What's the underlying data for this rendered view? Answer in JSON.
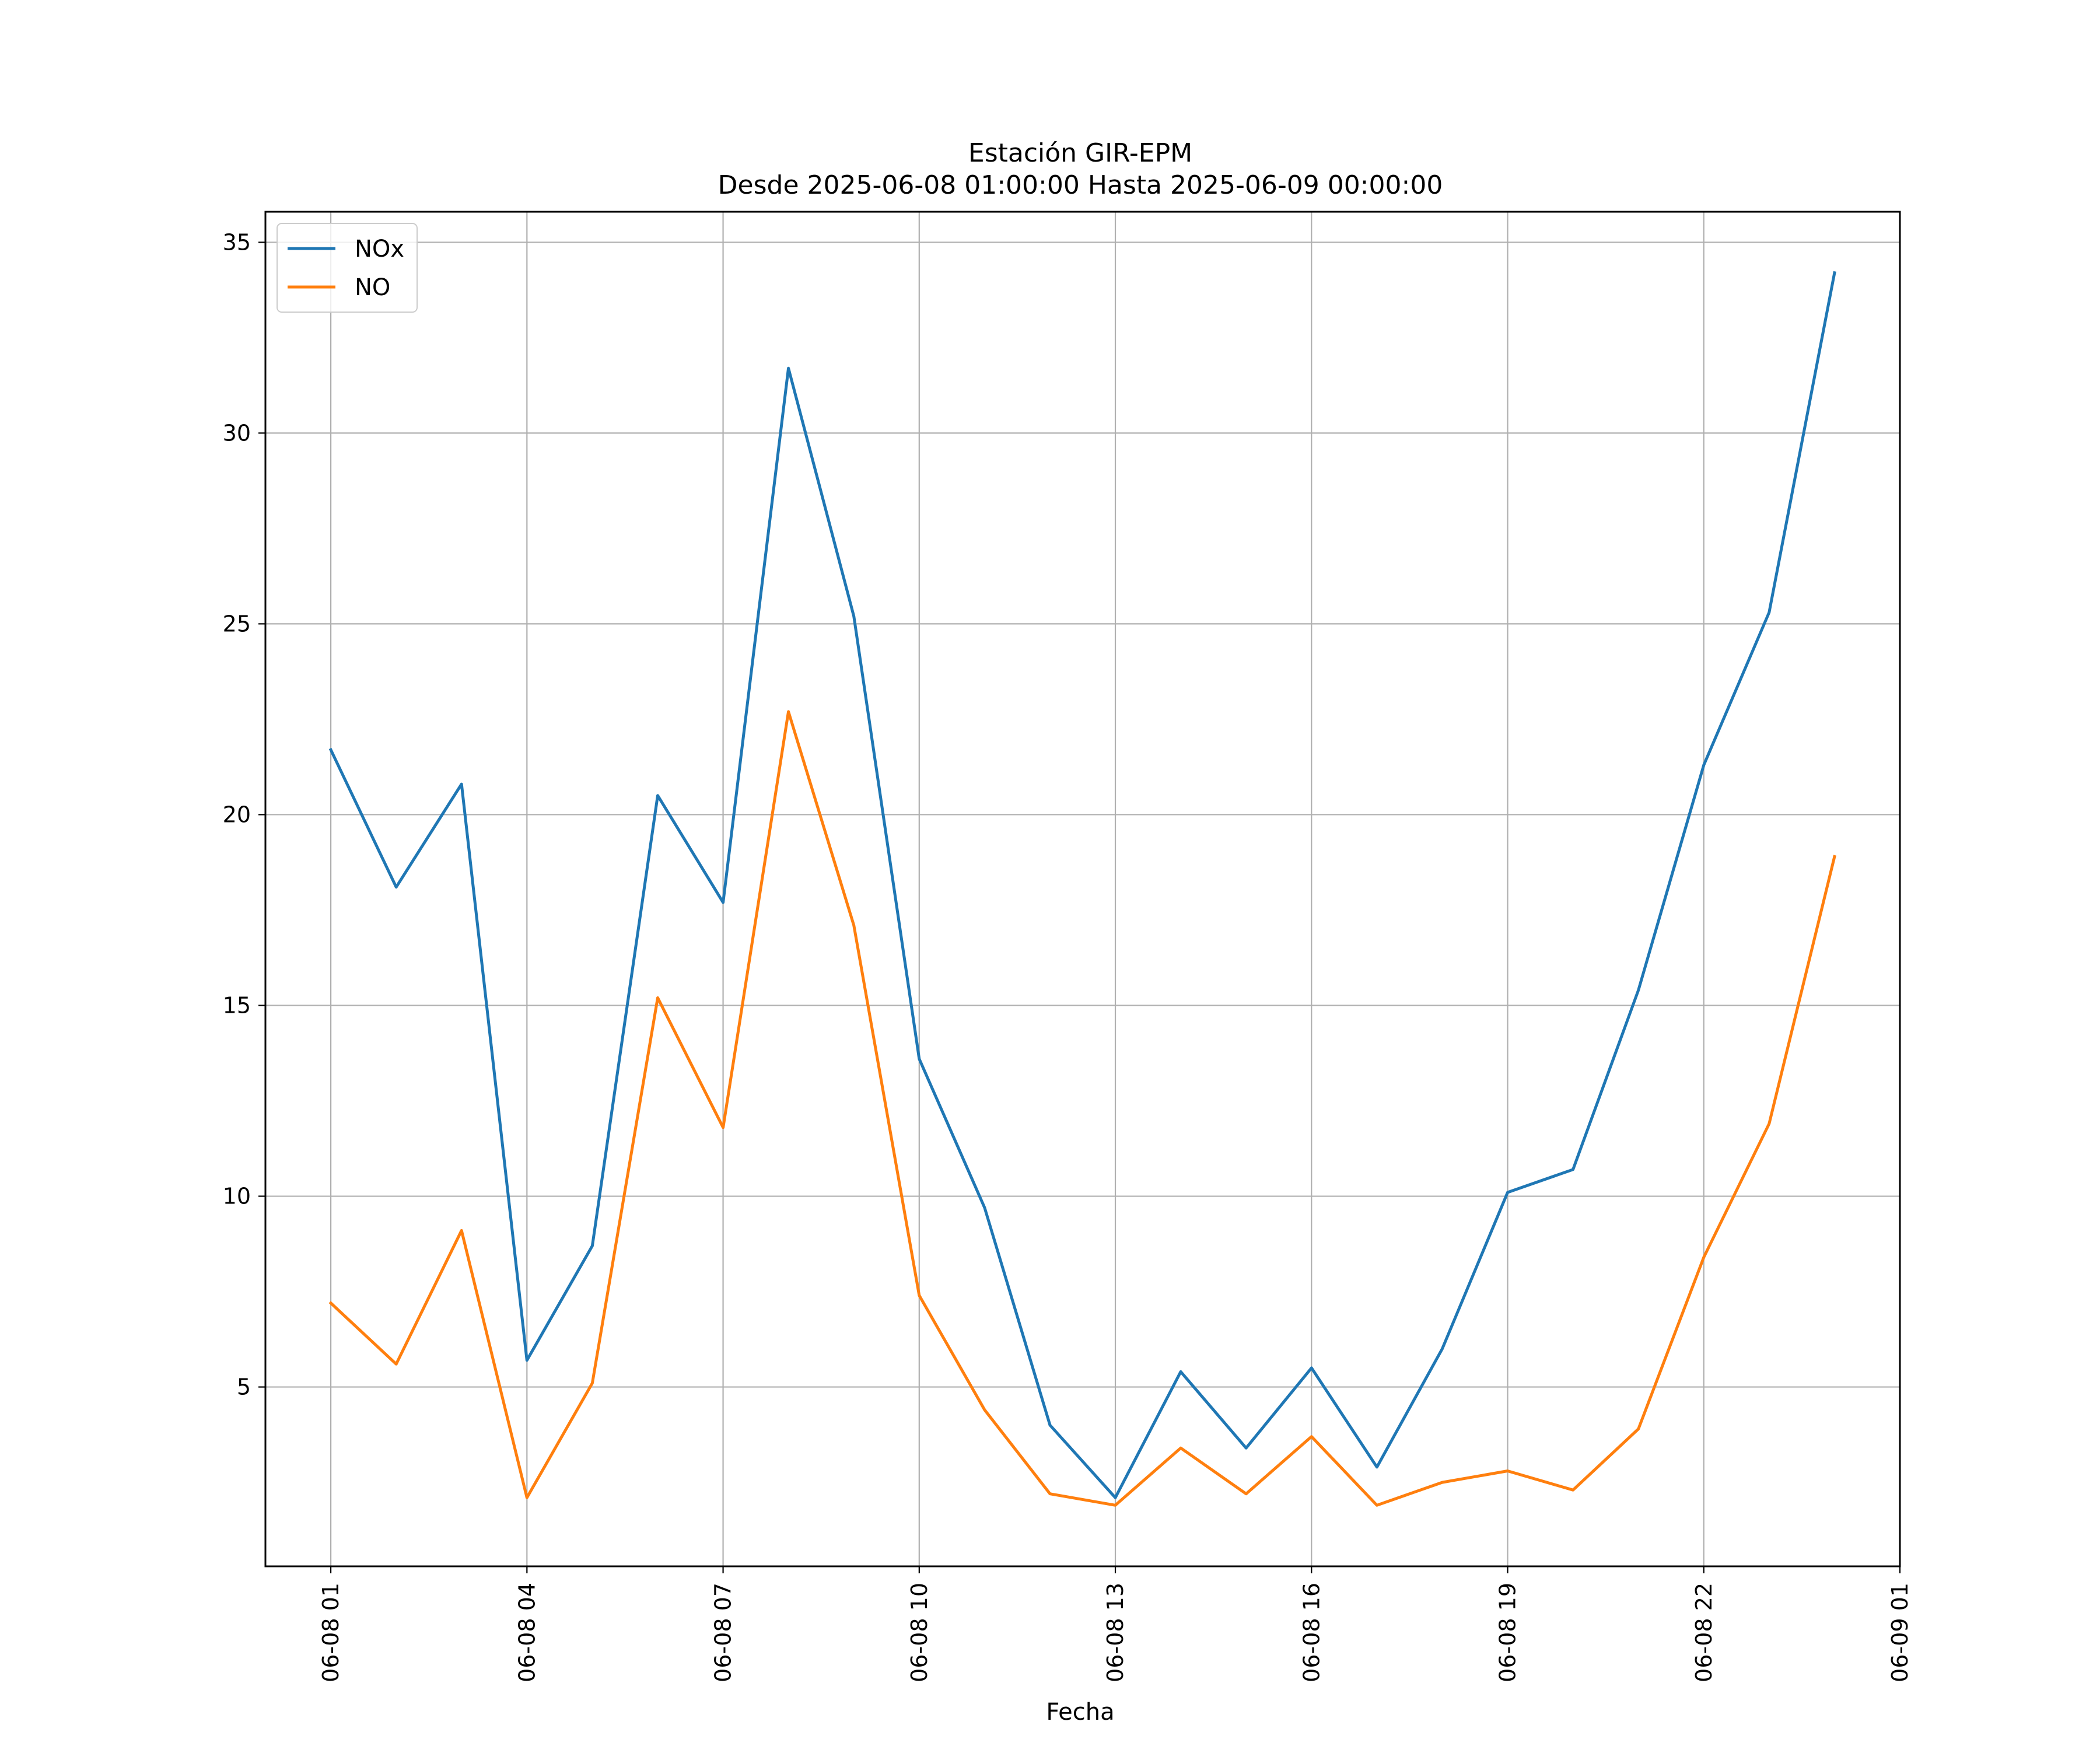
{
  "chart_data": {
    "type": "line",
    "title": "Estación GIR-EPM",
    "subtitle": "Desde 2025-06-08 01:00:00 Hasta 2025-06-09 00:00:00",
    "xlabel": "Fecha",
    "ylabel": "",
    "x": [
      "2025-06-08 01:00",
      "2025-06-08 02:00",
      "2025-06-08 03:00",
      "2025-06-08 04:00",
      "2025-06-08 05:00",
      "2025-06-08 06:00",
      "2025-06-08 07:00",
      "2025-06-08 08:00",
      "2025-06-08 09:00",
      "2025-06-08 10:00",
      "2025-06-08 11:00",
      "2025-06-08 12:00",
      "2025-06-08 13:00",
      "2025-06-08 14:00",
      "2025-06-08 15:00",
      "2025-06-08 16:00",
      "2025-06-08 17:00",
      "2025-06-08 18:00",
      "2025-06-08 19:00",
      "2025-06-08 20:00",
      "2025-06-08 21:00",
      "2025-06-08 22:00",
      "2025-06-08 23:00",
      "2025-06-09 00:00"
    ],
    "xlim": [
      "2025-06-08 00:00",
      "2025-06-09 01:00"
    ],
    "xticks": [
      {
        "value": "2025-06-08 01:00",
        "label": "06-08 01"
      },
      {
        "value": "2025-06-08 04:00",
        "label": "06-08 04"
      },
      {
        "value": "2025-06-08 07:00",
        "label": "06-08 07"
      },
      {
        "value": "2025-06-08 10:00",
        "label": "06-08 10"
      },
      {
        "value": "2025-06-08 13:00",
        "label": "06-08 13"
      },
      {
        "value": "2025-06-08 16:00",
        "label": "06-08 16"
      },
      {
        "value": "2025-06-08 19:00",
        "label": "06-08 19"
      },
      {
        "value": "2025-06-08 22:00",
        "label": "06-08 22"
      },
      {
        "value": "2025-06-09 01:00",
        "label": "06-09 01"
      }
    ],
    "ylim": [
      0.3,
      35.8
    ],
    "yticks": [
      5,
      10,
      15,
      20,
      25,
      30,
      35
    ],
    "grid": true,
    "legend_position": "top-left",
    "series": [
      {
        "name": "NOx",
        "color": "#1f77b4",
        "values": [
          21.7,
          18.1,
          20.8,
          5.7,
          8.7,
          20.5,
          17.7,
          31.7,
          25.2,
          13.6,
          9.7,
          4.0,
          2.1,
          5.4,
          3.4,
          5.5,
          2.9,
          6.0,
          10.1,
          10.7,
          15.4,
          21.3,
          25.3,
          34.2
        ]
      },
      {
        "name": "NO",
        "color": "#ff7f0e",
        "values": [
          7.2,
          5.6,
          9.1,
          2.1,
          5.1,
          15.2,
          11.8,
          22.7,
          17.1,
          7.4,
          4.4,
          2.2,
          1.9,
          3.4,
          2.2,
          3.7,
          1.9,
          2.5,
          2.8,
          2.3,
          3.9,
          8.4,
          11.9,
          18.9
        ]
      }
    ]
  }
}
